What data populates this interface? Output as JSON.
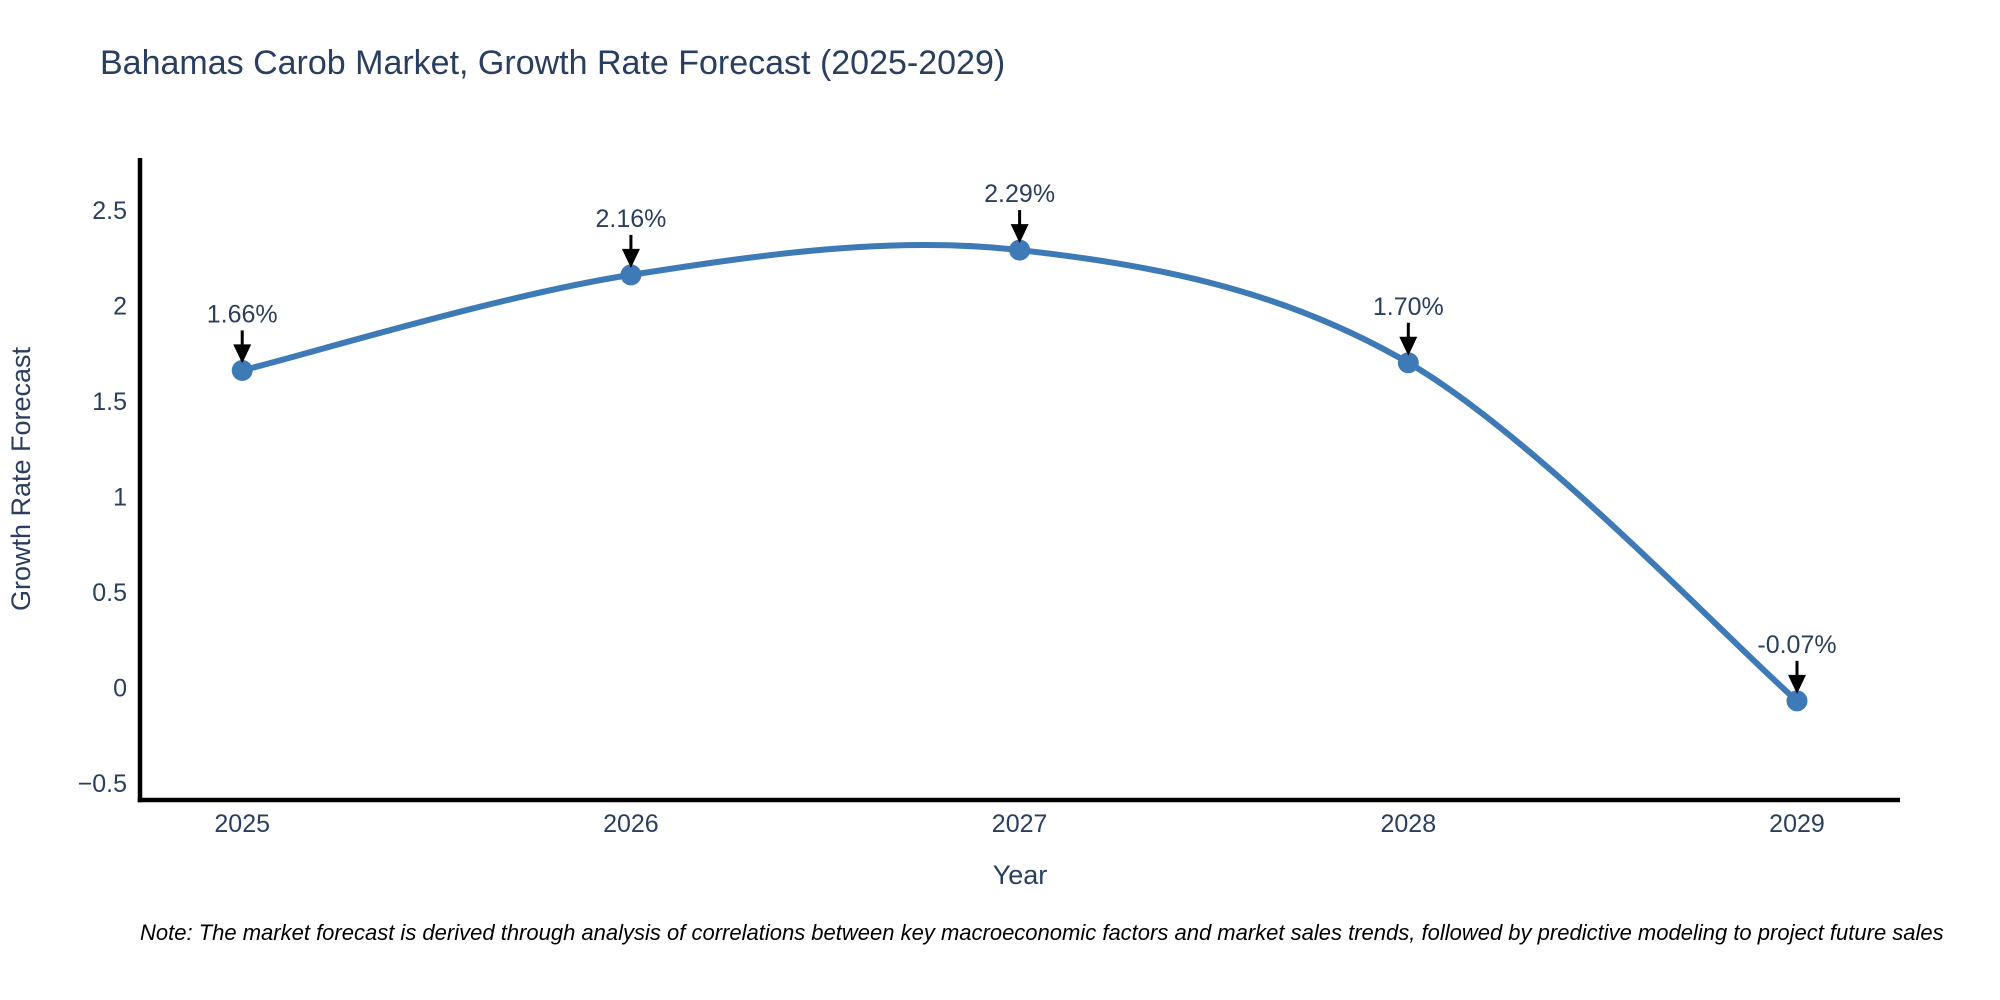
{
  "header": {
    "title": "Bahamas Carob Market, Growth Rate Forecast (2025-2029)"
  },
  "footer": {
    "note": "Note: The market forecast is derived through analysis of correlations between key macroeconomic factors and market sales trends, followed by predictive modeling to project future sales"
  },
  "chart_data": {
    "type": "line",
    "title": "Bahamas Carob Market, Growth Rate Forecast (2025-2029)",
    "xlabel": "Year",
    "ylabel": "Growth Rate Forecast",
    "x": [
      2025,
      2026,
      2027,
      2028,
      2029
    ],
    "series": [
      {
        "name": "Growth Rate Forecast",
        "values": [
          1.66,
          2.16,
          2.29,
          1.7,
          -0.07
        ]
      }
    ],
    "point_labels": [
      "1.66%",
      "2.16%",
      "2.29%",
      "1.70%",
      "-0.07%"
    ],
    "line_shape": "spline",
    "markers": true,
    "grid": false,
    "legend_position": "none",
    "xlim": [
      2024.737,
      2029.265
    ],
    "ylim": [
      -0.589,
      2.772
    ],
    "xticks": [
      2025,
      2026,
      2027,
      2028,
      2029
    ],
    "xtick_labels": [
      "2025",
      "2026",
      "2027",
      "2028",
      "2029"
    ],
    "yticks": [
      2.5,
      2,
      1.5,
      1,
      0.5,
      0,
      -0.5
    ],
    "ytick_labels": [
      "2.5",
      "2",
      "1.5",
      "1",
      "0.5",
      "0",
      "−0.5"
    ],
    "colors": {
      "line": "#3e7ab5",
      "marker": "#3e7ab5",
      "axis_line": "#000000",
      "text": "#2a3f5f",
      "arrow": "#000000",
      "note_text": "#000000",
      "background": "#ffffff"
    }
  }
}
